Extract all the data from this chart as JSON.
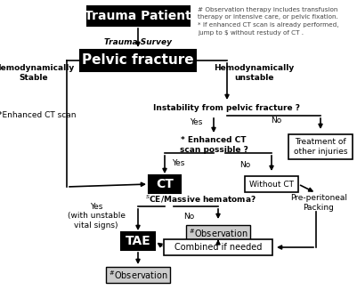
{
  "figsize": [
    4.01,
    3.26
  ],
  "dpi": 100,
  "bg_color": "#ffffff",
  "note_text": "# Observation therapy includes transfusion\ntherapy or intensive care, or pelvic fixation.\n* If enhanced CT scan is already performed,\njump to $ without restudy of CT .",
  "trauma_survey_text": "Trauma Survey",
  "hemo_stable_text": "Hemodynamically\nStable",
  "hemo_unstable_text": "Hemodynamically\nunstable",
  "enhanced_ct_scan_text": "*Enhanced CT scan"
}
